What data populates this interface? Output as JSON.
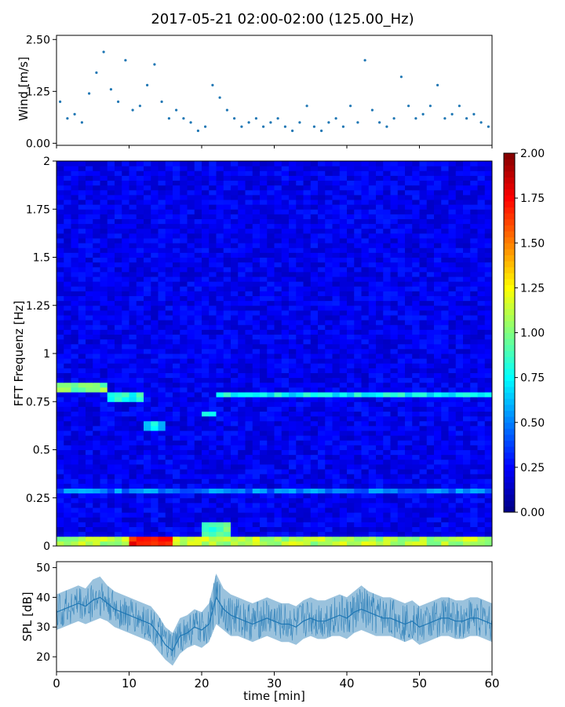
{
  "figure": {
    "title": "2017-05-21 02:00-02:00 (125.00_Hz)",
    "xlabel": "time [min]"
  },
  "chart_data": [
    {
      "type": "scatter",
      "panel": "wind",
      "title": "",
      "xlabel": "",
      "ylabel": "Wind [m/s]",
      "xlim": [
        0,
        60
      ],
      "ylim": [
        -0.05,
        2.6
      ],
      "yticks": [
        "0.00",
        "1.25",
        "2.50"
      ],
      "color": "#1f77b4",
      "series": [
        {
          "x": [
            0.5,
            1.5,
            2.5,
            3.5,
            4.5,
            5.5,
            6.5,
            7.5,
            8.5,
            9.5,
            10.5,
            11.5,
            12.5,
            13.5,
            14.5,
            15.5,
            16.5,
            17.5,
            18.5,
            19.5,
            20.5,
            21.5,
            22.5,
            23.5,
            24.5,
            25.5,
            26.5,
            27.5,
            28.5,
            29.5,
            30.5,
            31.5,
            32.5,
            33.5,
            34.5,
            35.5,
            36.5,
            37.5,
            38.5,
            39.5,
            40.5,
            41.5,
            42.5,
            43.5,
            44.5,
            45.5,
            46.5,
            47.5,
            48.5,
            49.5,
            50.5,
            51.5,
            52.5,
            53.5,
            54.5,
            55.5,
            56.5,
            57.5,
            58.5,
            59.5
          ],
          "y": [
            1.0,
            0.6,
            0.7,
            0.5,
            1.2,
            1.7,
            2.2,
            1.3,
            1.0,
            2.0,
            0.8,
            0.9,
            1.4,
            1.9,
            1.0,
            0.6,
            0.8,
            0.6,
            0.5,
            0.3,
            0.4,
            1.4,
            1.1,
            0.8,
            0.6,
            0.4,
            0.5,
            0.6,
            0.4,
            0.5,
            0.6,
            0.4,
            0.3,
            0.5,
            0.9,
            0.4,
            0.3,
            0.5,
            0.6,
            0.4,
            0.9,
            0.5,
            2.0,
            0.8,
            0.5,
            0.4,
            0.6,
            1.6,
            0.9,
            0.6,
            0.7,
            0.9,
            1.4,
            0.6,
            0.7,
            0.9,
            0.6,
            0.7,
            0.5,
            0.4
          ]
        }
      ]
    },
    {
      "type": "heatmap",
      "panel": "spectrogram",
      "title": "",
      "xlabel": "",
      "ylabel": "FFT Frequenz [Hz]",
      "xlim": [
        0,
        60
      ],
      "ylim": [
        0,
        2
      ],
      "yticks": [
        "0",
        "0.25",
        "0.5",
        "0.75",
        "1",
        "1.25",
        "1.5",
        "1.75",
        "2"
      ],
      "colormap": "jet",
      "colorbar": {
        "min": 0,
        "max": 2,
        "ticks": [
          "0.00",
          "0.25",
          "0.50",
          "0.75",
          "1.00",
          "1.25",
          "1.50",
          "1.75",
          "2.00"
        ]
      },
      "background_level": 0.22,
      "features": [
        {
          "x": [
            0,
            60
          ],
          "y": [
            0.0,
            0.04
          ],
          "value": 1.1
        },
        {
          "x": [
            10,
            16
          ],
          "y": [
            0.0,
            0.04
          ],
          "value": 1.7
        },
        {
          "x": [
            20,
            24
          ],
          "y": [
            0.0,
            0.12
          ],
          "value": 0.9
        },
        {
          "x": [
            0,
            7
          ],
          "y": [
            0.79,
            0.85
          ],
          "value": 1.0
        },
        {
          "x": [
            7,
            12
          ],
          "y": [
            0.74,
            0.8
          ],
          "value": 0.8
        },
        {
          "x": [
            12,
            15
          ],
          "y": [
            0.6,
            0.65
          ],
          "value": 0.7
        },
        {
          "x": [
            20,
            22
          ],
          "y": [
            0.66,
            0.69
          ],
          "value": 0.8
        },
        {
          "x": [
            22,
            60
          ],
          "y": [
            0.77,
            0.8
          ],
          "value": 0.75
        },
        {
          "x": [
            0,
            60
          ],
          "y": [
            0.26,
            0.28
          ],
          "value": 0.5
        }
      ]
    },
    {
      "type": "line",
      "panel": "spl",
      "title": "",
      "xlabel": "time [min]",
      "ylabel": "SPL [dB]",
      "xlim": [
        0,
        60
      ],
      "ylim": [
        15,
        52
      ],
      "yticks": [
        20,
        30,
        40,
        50
      ],
      "xticks": [
        0,
        10,
        20,
        30,
        40,
        50,
        60
      ],
      "color": "#1f77b4",
      "series": [
        {
          "x": [
            0,
            1,
            2,
            3,
            4,
            5,
            6,
            7,
            8,
            9,
            10,
            11,
            12,
            13,
            14,
            15,
            16,
            17,
            18,
            19,
            20,
            21,
            22,
            23,
            24,
            25,
            26,
            27,
            28,
            29,
            30,
            31,
            32,
            33,
            34,
            35,
            36,
            37,
            38,
            39,
            40,
            41,
            42,
            43,
            44,
            45,
            46,
            47,
            48,
            49,
            50,
            51,
            52,
            53,
            54,
            55,
            56,
            57,
            58,
            59,
            60
          ],
          "y": [
            35,
            36,
            37,
            38,
            37,
            39,
            40,
            38,
            36,
            35,
            34,
            33,
            32,
            31,
            28,
            24,
            22,
            27,
            28,
            30,
            29,
            31,
            40,
            36,
            34,
            33,
            32,
            31,
            32,
            33,
            32,
            31,
            31,
            30,
            32,
            33,
            32,
            32,
            33,
            34,
            33,
            35,
            36,
            35,
            34,
            33,
            33,
            32,
            31,
            32,
            30,
            31,
            32,
            33,
            33,
            32,
            32,
            33,
            33,
            32,
            31
          ],
          "low": [
            29,
            30,
            31,
            32,
            31,
            32,
            33,
            32,
            30,
            29,
            28,
            27,
            26,
            25,
            22,
            19,
            17,
            21,
            23,
            24,
            23,
            25,
            31,
            29,
            27,
            27,
            26,
            25,
            26,
            27,
            26,
            25,
            25,
            24,
            26,
            27,
            26,
            26,
            27,
            27,
            26,
            28,
            29,
            28,
            27,
            27,
            27,
            26,
            25,
            26,
            24,
            25,
            26,
            27,
            27,
            26,
            26,
            27,
            27,
            26,
            25
          ],
          "high": [
            41,
            42,
            43,
            44,
            43,
            46,
            47,
            44,
            42,
            41,
            40,
            39,
            38,
            37,
            34,
            30,
            28,
            33,
            34,
            36,
            35,
            38,
            48,
            43,
            41,
            40,
            39,
            38,
            39,
            40,
            39,
            38,
            38,
            37,
            39,
            40,
            39,
            39,
            40,
            41,
            40,
            42,
            44,
            42,
            41,
            40,
            40,
            39,
            38,
            39,
            37,
            38,
            39,
            40,
            40,
            39,
            39,
            40,
            40,
            39,
            38
          ]
        }
      ]
    }
  ]
}
